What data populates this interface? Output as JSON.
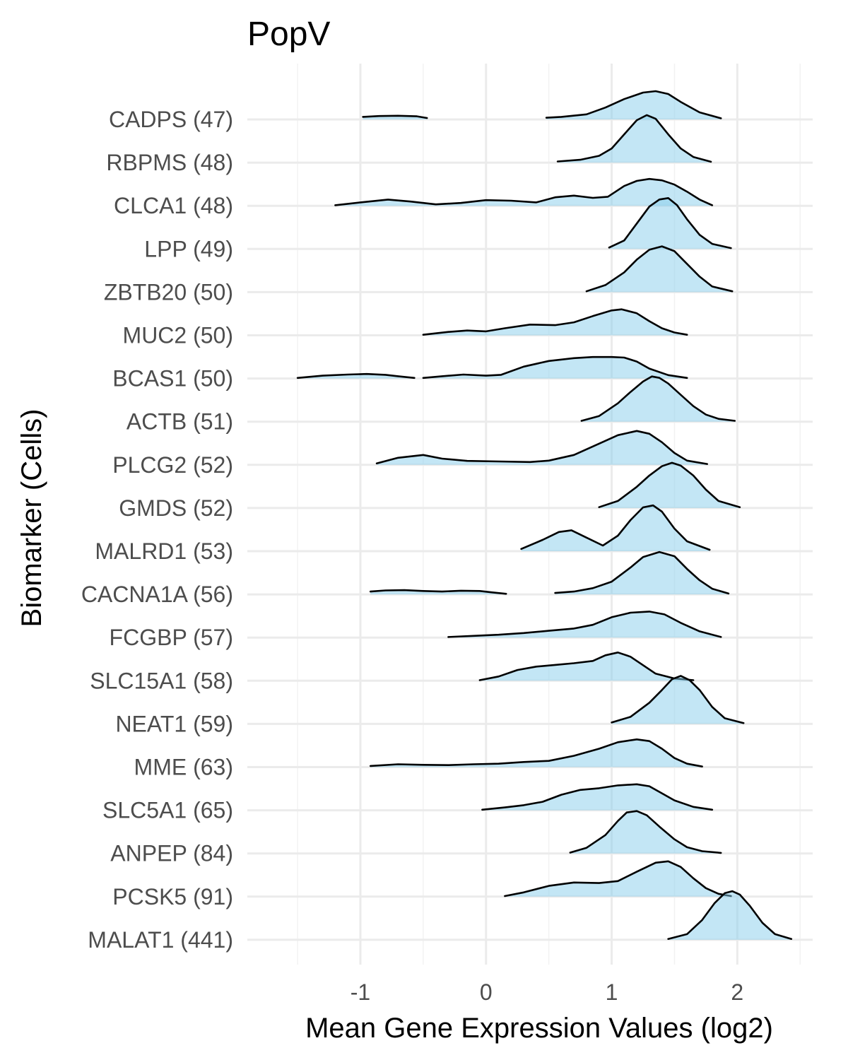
{
  "chart_data": {
    "type": "ridgeline",
    "title": "PopV",
    "xlabel": "Mean Gene Expression Values (log2)",
    "ylabel": "Biomarker (Cells)",
    "xlim": [
      -1.9,
      2.6
    ],
    "x_ticks": [
      -1,
      0,
      1,
      2
    ],
    "x_tick_labels": [
      "-1",
      "0",
      "1",
      "2"
    ],
    "grid": true,
    "legend": "none",
    "fill_color": "#87ceeb",
    "line_color": "#000000",
    "series": [
      {
        "label": "CADPS (47)",
        "segments": [
          {
            "x": [
              -0.98,
              -0.85,
              -0.7,
              -0.55,
              -0.47
            ],
            "y": [
              0.09,
              0.12,
              0.13,
              0.11,
              0.05
            ]
          },
          {
            "x": [
              0.48,
              0.6,
              0.8,
              0.95,
              1.1,
              1.25,
              1.35,
              1.45,
              1.55,
              1.7,
              1.87
            ],
            "y": [
              0.06,
              0.09,
              0.18,
              0.42,
              0.72,
              0.95,
              1.0,
              0.9,
              0.62,
              0.25,
              0.04
            ]
          }
        ]
      },
      {
        "label": "RBPMS (48)",
        "segments": [
          {
            "x": [
              0.57,
              0.75,
              0.9,
              1.0,
              1.1,
              1.2,
              1.28,
              1.35,
              1.45,
              1.55,
              1.65,
              1.79
            ],
            "y": [
              0.04,
              0.1,
              0.24,
              0.5,
              1.0,
              1.5,
              1.68,
              1.55,
              1.0,
              0.5,
              0.2,
              0.03
            ]
          }
        ]
      },
      {
        "label": "CLCA1 (48)",
        "segments": [
          {
            "x": [
              -1.2,
              -1.0,
              -0.78,
              -0.6,
              -0.4,
              -0.2,
              0.0,
              0.2,
              0.4,
              0.55,
              0.7,
              0.85,
              0.97,
              1.1,
              1.2,
              1.3,
              1.4,
              1.5,
              1.6,
              1.7,
              1.8
            ],
            "y": [
              0.02,
              0.12,
              0.22,
              0.15,
              0.05,
              0.1,
              0.2,
              0.18,
              0.12,
              0.3,
              0.36,
              0.28,
              0.32,
              0.7,
              0.88,
              0.95,
              0.9,
              0.75,
              0.5,
              0.22,
              0.02
            ]
          }
        ]
      },
      {
        "label": "LPP (49)",
        "segments": [
          {
            "x": [
              0.98,
              1.1,
              1.2,
              1.3,
              1.38,
              1.45,
              1.52,
              1.6,
              1.7,
              1.8,
              1.95
            ],
            "y": [
              0.05,
              0.3,
              0.9,
              1.5,
              1.75,
              1.8,
              1.55,
              1.05,
              0.5,
              0.18,
              0.03
            ]
          }
        ]
      },
      {
        "label": "ZBTB20 (50)",
        "segments": [
          {
            "x": [
              0.8,
              0.95,
              1.1,
              1.2,
              1.3,
              1.4,
              1.5,
              1.6,
              1.7,
              1.8,
              1.96
            ],
            "y": [
              0.03,
              0.25,
              0.7,
              1.15,
              1.5,
              1.62,
              1.45,
              1.0,
              0.55,
              0.2,
              0.03
            ]
          }
        ]
      },
      {
        "label": "MUC2 (50)",
        "segments": [
          {
            "x": [
              -0.5,
              -0.3,
              -0.15,
              0.0,
              0.15,
              0.35,
              0.55,
              0.7,
              0.85,
              1.0,
              1.08,
              1.2,
              1.3,
              1.4,
              1.5,
              1.6
            ],
            "y": [
              0.02,
              0.12,
              0.17,
              0.14,
              0.25,
              0.38,
              0.36,
              0.46,
              0.68,
              0.88,
              0.92,
              0.78,
              0.5,
              0.25,
              0.1,
              0.02
            ]
          }
        ]
      },
      {
        "label": "BCAS1 (50)",
        "segments": [
          {
            "x": [
              -1.5,
              -1.3,
              -1.1,
              -0.95,
              -0.8,
              -0.7,
              -0.57
            ],
            "y": [
              0.02,
              0.1,
              0.14,
              0.16,
              0.13,
              0.08,
              0.02
            ]
          },
          {
            "x": [
              -0.5,
              -0.35,
              -0.18,
              0.0,
              0.12,
              0.3,
              0.5,
              0.7,
              0.85,
              1.0,
              1.1,
              1.2,
              1.3,
              1.45,
              1.6
            ],
            "y": [
              0.02,
              0.08,
              0.14,
              0.1,
              0.13,
              0.42,
              0.62,
              0.72,
              0.76,
              0.76,
              0.74,
              0.6,
              0.35,
              0.12,
              0.02
            ]
          }
        ]
      },
      {
        "label": "ACTB (51)",
        "segments": [
          {
            "x": [
              0.76,
              0.9,
              1.05,
              1.15,
              1.25,
              1.32,
              1.38,
              1.45,
              1.55,
              1.65,
              1.75,
              1.85,
              1.98
            ],
            "y": [
              0.03,
              0.2,
              0.65,
              1.05,
              1.42,
              1.6,
              1.55,
              1.35,
              0.95,
              0.55,
              0.25,
              0.1,
              0.03
            ]
          }
        ]
      },
      {
        "label": "PLCG2 (52)",
        "segments": [
          {
            "x": [
              -0.87,
              -0.7,
              -0.5,
              -0.35,
              -0.15,
              0.1,
              0.35,
              0.5,
              0.7,
              0.9,
              1.05,
              1.2,
              1.3,
              1.4,
              1.5,
              1.6,
              1.76
            ],
            "y": [
              0.05,
              0.25,
              0.35,
              0.22,
              0.14,
              0.12,
              0.1,
              0.15,
              0.35,
              0.75,
              1.05,
              1.2,
              1.1,
              0.8,
              0.42,
              0.15,
              0.03
            ]
          }
        ]
      },
      {
        "label": "GMDS (52)",
        "segments": [
          {
            "x": [
              0.9,
              1.05,
              1.2,
              1.3,
              1.4,
              1.48,
              1.55,
              1.65,
              1.75,
              1.85,
              2.02
            ],
            "y": [
              0.03,
              0.25,
              0.75,
              1.15,
              1.48,
              1.6,
              1.5,
              1.15,
              0.65,
              0.25,
              0.03
            ]
          }
        ]
      },
      {
        "label": "MALRD1 (53)",
        "segments": [
          {
            "x": [
              0.28,
              0.45,
              0.58,
              0.68,
              0.8,
              0.93,
              1.05,
              1.15,
              1.25,
              1.33,
              1.4,
              1.5,
              1.6,
              1.78
            ],
            "y": [
              0.08,
              0.4,
              0.68,
              0.74,
              0.48,
              0.2,
              0.55,
              1.1,
              1.55,
              1.62,
              1.4,
              0.8,
              0.35,
              0.05
            ]
          }
        ]
      },
      {
        "label": "CACNA1A (56)",
        "segments": [
          {
            "x": [
              -0.92,
              -0.8,
              -0.65,
              -0.5,
              -0.35,
              -0.2,
              -0.05,
              0.05,
              0.16
            ],
            "y": [
              0.1,
              0.14,
              0.15,
              0.12,
              0.1,
              0.13,
              0.12,
              0.07,
              0.02
            ]
          },
          {
            "x": [
              0.55,
              0.7,
              0.85,
              1.0,
              1.15,
              1.25,
              1.38,
              1.5,
              1.6,
              1.7,
              1.8,
              1.93
            ],
            "y": [
              0.05,
              0.1,
              0.22,
              0.45,
              0.95,
              1.32,
              1.5,
              1.35,
              0.9,
              0.5,
              0.2,
              0.03
            ]
          }
        ]
      },
      {
        "label": "FCGBP (57)",
        "segments": [
          {
            "x": [
              -0.3,
              -0.1,
              0.1,
              0.3,
              0.5,
              0.7,
              0.85,
              1.0,
              1.15,
              1.3,
              1.42,
              1.55,
              1.7,
              1.87
            ],
            "y": [
              0.02,
              0.06,
              0.1,
              0.16,
              0.24,
              0.32,
              0.45,
              0.72,
              0.88,
              0.92,
              0.82,
              0.52,
              0.22,
              0.02
            ]
          }
        ]
      },
      {
        "label": "SLC15A1 (58)",
        "segments": [
          {
            "x": [
              -0.05,
              0.1,
              0.25,
              0.4,
              0.55,
              0.7,
              0.85,
              0.95,
              1.05,
              1.15,
              1.25,
              1.35,
              1.5,
              1.65
            ],
            "y": [
              0.02,
              0.15,
              0.38,
              0.5,
              0.56,
              0.62,
              0.7,
              0.9,
              1.0,
              0.85,
              0.55,
              0.25,
              0.08,
              0.02
            ]
          }
        ]
      },
      {
        "label": "NEAT1 (59)",
        "segments": [
          {
            "x": [
              1.0,
              1.15,
              1.3,
              1.4,
              1.48,
              1.55,
              1.62,
              1.7,
              1.8,
              1.9,
              2.05
            ],
            "y": [
              0.05,
              0.25,
              0.75,
              1.2,
              1.58,
              1.7,
              1.55,
              1.2,
              0.6,
              0.2,
              0.03
            ]
          }
        ]
      },
      {
        "label": "MME (63)",
        "segments": [
          {
            "x": [
              -0.92,
              -0.7,
              -0.5,
              -0.3,
              -0.1,
              0.1,
              0.3,
              0.5,
              0.7,
              0.9,
              1.05,
              1.2,
              1.3,
              1.4,
              1.5,
              1.6,
              1.72
            ],
            "y": [
              0.04,
              0.1,
              0.08,
              0.07,
              0.1,
              0.12,
              0.18,
              0.22,
              0.4,
              0.65,
              0.88,
              0.98,
              0.92,
              0.65,
              0.32,
              0.12,
              0.02
            ]
          }
        ]
      },
      {
        "label": "SLC5A1 (65)",
        "segments": [
          {
            "x": [
              -0.03,
              0.15,
              0.3,
              0.45,
              0.6,
              0.75,
              0.9,
              1.05,
              1.2,
              1.3,
              1.4,
              1.5,
              1.65,
              1.8
            ],
            "y": [
              0.02,
              0.1,
              0.18,
              0.3,
              0.55,
              0.72,
              0.78,
              0.88,
              0.92,
              0.85,
              0.6,
              0.35,
              0.12,
              0.02
            ]
          }
        ]
      },
      {
        "label": "ANPEP (84)",
        "segments": [
          {
            "x": [
              0.67,
              0.8,
              0.95,
              1.05,
              1.12,
              1.2,
              1.28,
              1.38,
              1.5,
              1.6,
              1.72,
              1.87
            ],
            "y": [
              0.03,
              0.2,
              0.65,
              1.15,
              1.45,
              1.5,
              1.35,
              0.95,
              0.5,
              0.22,
              0.08,
              0.02
            ]
          }
        ]
      },
      {
        "label": "PCSK5 (91)",
        "segments": [
          {
            "x": [
              0.15,
              0.3,
              0.5,
              0.7,
              0.9,
              1.05,
              1.2,
              1.35,
              1.45,
              1.55,
              1.65,
              1.75,
              1.85,
              1.95
            ],
            "y": [
              0.02,
              0.15,
              0.38,
              0.5,
              0.48,
              0.55,
              0.88,
              1.2,
              1.25,
              1.05,
              0.65,
              0.3,
              0.1,
              0.02
            ]
          }
        ]
      },
      {
        "label": "MALAT1 (441)",
        "segments": [
          {
            "x": [
              1.45,
              1.6,
              1.72,
              1.82,
              1.9,
              1.96,
              2.02,
              2.1,
              2.2,
              2.3,
              2.43
            ],
            "y": [
              0.03,
              0.2,
              0.7,
              1.3,
              1.65,
              1.72,
              1.6,
              1.2,
              0.6,
              0.2,
              0.03
            ]
          }
        ]
      }
    ]
  }
}
